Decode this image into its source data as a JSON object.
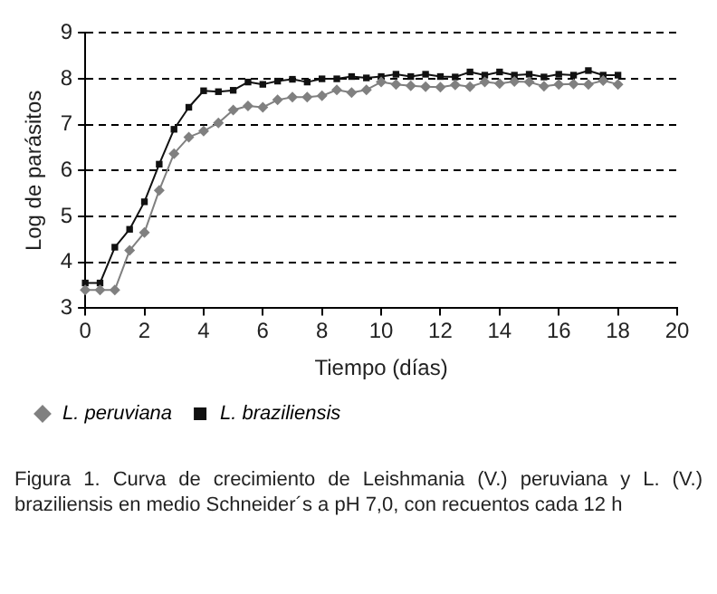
{
  "chart_data": {
    "type": "line",
    "xlabel": "Tiempo (días)",
    "ylabel": "Log de parásitos",
    "x": [
      0,
      0.5,
      1,
      1.5,
      2,
      2.5,
      3,
      3.5,
      4,
      4.5,
      5,
      5.5,
      6,
      6.5,
      7,
      7.5,
      8,
      8.5,
      9,
      9.5,
      10,
      10.5,
      11,
      11.5,
      12,
      12.5,
      13,
      13.5,
      14,
      14.5,
      15,
      15.5,
      16,
      16.5,
      17,
      17.5,
      18
    ],
    "series": [
      {
        "name": "L. peruviana",
        "color": "#808080",
        "marker": "diamond",
        "values": [
          3.4,
          3.4,
          3.4,
          4.26,
          4.65,
          5.57,
          6.37,
          6.73,
          6.86,
          7.04,
          7.32,
          7.41,
          7.38,
          7.54,
          7.6,
          7.6,
          7.63,
          7.76,
          7.7,
          7.76,
          7.93,
          7.88,
          7.85,
          7.83,
          7.82,
          7.87,
          7.83,
          7.93,
          7.9,
          7.94,
          7.93,
          7.84,
          7.88,
          7.89,
          7.88,
          7.96,
          7.88
        ]
      },
      {
        "name": "L. braziliensis",
        "color": "#111111",
        "marker": "square",
        "values": [
          3.55,
          3.55,
          4.33,
          4.72,
          5.32,
          6.14,
          6.9,
          7.38,
          7.74,
          7.72,
          7.75,
          7.93,
          7.88,
          7.95,
          7.99,
          7.93,
          8.0,
          8.0,
          8.05,
          8.02,
          8.05,
          8.1,
          8.05,
          8.1,
          8.05,
          8.04,
          8.15,
          8.08,
          8.15,
          8.08,
          8.1,
          8.04,
          8.1,
          8.08,
          8.18,
          8.08,
          8.08
        ]
      }
    ],
    "xlim": [
      0,
      20
    ],
    "xticks": [
      0,
      2,
      4,
      6,
      8,
      10,
      12,
      14,
      16,
      18,
      20
    ],
    "ylim": [
      3,
      9
    ],
    "yticks": [
      3,
      4,
      5,
      6,
      7,
      8,
      9
    ],
    "grid": "y",
    "legend": "bottom left",
    "line_style": "solid",
    "annotations": [
      "Figura 1. Curva de crecimiento de Leishmania (V.) peruviana y L. (V.) braziliensis en medio Schneider´s a pH 7,0, con recuentos cada 12 h"
    ]
  }
}
